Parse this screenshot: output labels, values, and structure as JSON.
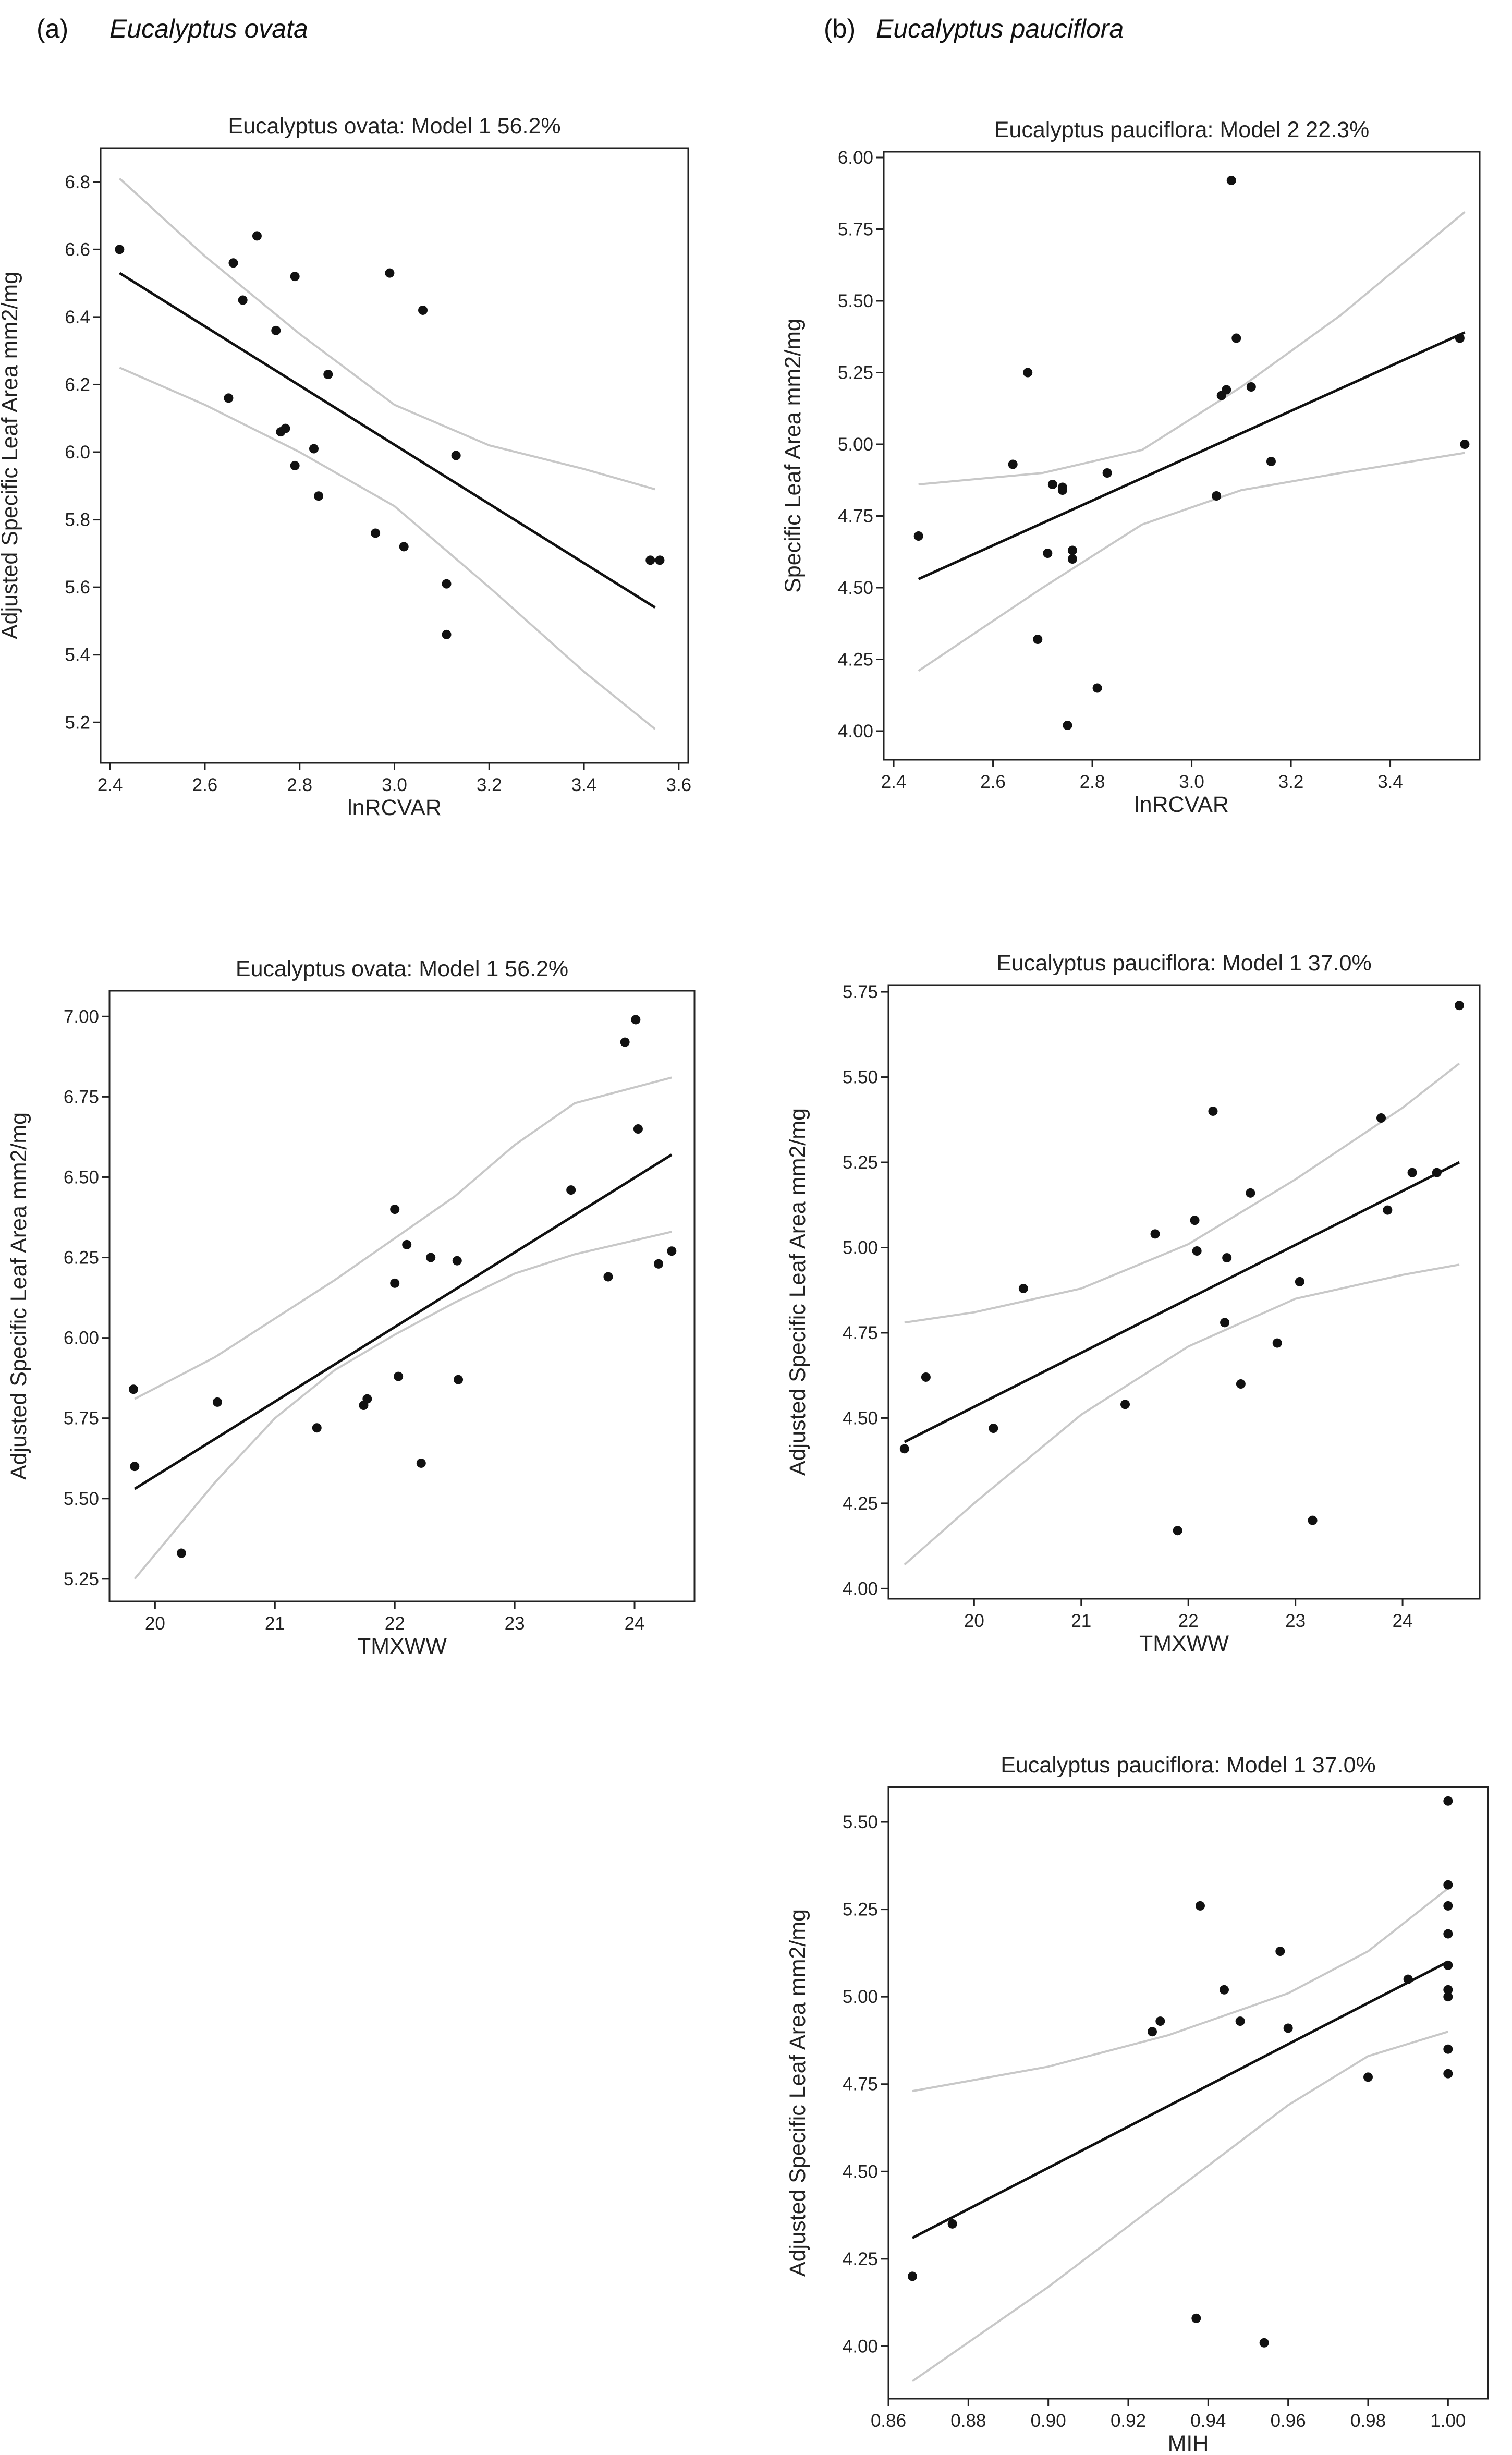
{
  "panel_labels": [
    {
      "letter": "(a)",
      "species": "Eucalyptus ovata"
    },
    {
      "letter": "(b)",
      "species": "Eucalyptus pauciflora"
    }
  ],
  "colors": {
    "points": "#111111",
    "fit": "#111111",
    "ci": "#c8c8c8",
    "frame": "#222222"
  },
  "chart_data": [
    {
      "id": "ovata-lnrcvar",
      "type": "scatter",
      "title": "Eucalyptus ovata: Model 1 56.2%",
      "xlabel": "lnRCVAR",
      "ylabel": "Adjusted Specific Leaf Area mm2/mg",
      "xlim": [
        2.38,
        3.62
      ],
      "ylim": [
        5.08,
        6.9
      ],
      "xticks": [
        2.4,
        2.6,
        2.8,
        3.0,
        3.2,
        3.4,
        3.6
      ],
      "xtick_labels": [
        "2.4",
        "2.6",
        "2.8",
        "3.0",
        "3.2",
        "3.4",
        "3.6"
      ],
      "yticks": [
        5.2,
        5.4,
        5.6,
        5.8,
        6.0,
        6.2,
        6.4,
        6.6,
        6.8
      ],
      "ytick_labels": [
        "5.2",
        "5.4",
        "5.6",
        "5.8",
        "6.0",
        "6.2",
        "6.4",
        "6.6",
        "6.8"
      ],
      "points": [
        [
          2.42,
          6.6
        ],
        [
          2.65,
          6.16
        ],
        [
          2.66,
          6.56
        ],
        [
          2.68,
          6.45
        ],
        [
          2.71,
          6.64
        ],
        [
          2.75,
          6.36
        ],
        [
          2.76,
          6.06
        ],
        [
          2.77,
          6.07
        ],
        [
          2.79,
          6.52
        ],
        [
          2.79,
          5.96
        ],
        [
          2.83,
          6.01
        ],
        [
          2.84,
          5.87
        ],
        [
          2.86,
          6.23
        ],
        [
          2.96,
          5.76
        ],
        [
          2.99,
          6.53
        ],
        [
          3.02,
          5.72
        ],
        [
          3.06,
          6.42
        ],
        [
          3.11,
          5.61
        ],
        [
          3.11,
          5.46
        ],
        [
          3.13,
          5.99
        ],
        [
          3.54,
          5.68
        ],
        [
          3.56,
          5.68
        ]
      ],
      "fit_line": [
        [
          2.42,
          6.53
        ],
        [
          3.55,
          5.54
        ]
      ],
      "ci_upper": [
        [
          2.42,
          6.81
        ],
        [
          2.6,
          6.58
        ],
        [
          2.8,
          6.35
        ],
        [
          3.0,
          6.14
        ],
        [
          3.2,
          6.02
        ],
        [
          3.4,
          5.95
        ],
        [
          3.55,
          5.89
        ]
      ],
      "ci_lower": [
        [
          2.42,
          6.25
        ],
        [
          2.6,
          6.14
        ],
        [
          2.8,
          6.0
        ],
        [
          3.0,
          5.84
        ],
        [
          3.2,
          5.6
        ],
        [
          3.4,
          5.35
        ],
        [
          3.55,
          5.18
        ]
      ]
    },
    {
      "id": "pauciflora-lnrcvar",
      "type": "scatter",
      "title": "Eucalyptus pauciflora: Model 2 22.3%",
      "xlabel": "lnRCVAR",
      "ylabel": "Specific Leaf Area mm2/mg",
      "xlim": [
        2.38,
        3.58
      ],
      "ylim": [
        3.9,
        6.02
      ],
      "xticks": [
        2.4,
        2.6,
        2.8,
        3.0,
        3.2,
        3.4
      ],
      "xtick_labels": [
        "2.4",
        "2.6",
        "2.8",
        "3.0",
        "3.2",
        "3.4"
      ],
      "yticks": [
        4.0,
        4.25,
        4.5,
        4.75,
        5.0,
        5.25,
        5.5,
        5.75,
        6.0
      ],
      "ytick_labels": [
        "4.00",
        "4.25",
        "4.50",
        "4.75",
        "5.00",
        "5.25",
        "5.50",
        "5.75",
        "6.00"
      ],
      "points": [
        [
          2.45,
          4.68
        ],
        [
          2.64,
          4.93
        ],
        [
          2.67,
          5.25
        ],
        [
          2.69,
          4.32
        ],
        [
          2.71,
          4.62
        ],
        [
          2.72,
          4.86
        ],
        [
          2.74,
          4.84
        ],
        [
          2.74,
          4.85
        ],
        [
          2.75,
          4.02
        ],
        [
          2.76,
          4.63
        ],
        [
          2.76,
          4.6
        ],
        [
          2.81,
          4.15
        ],
        [
          2.83,
          4.9
        ],
        [
          3.05,
          4.82
        ],
        [
          3.06,
          5.17
        ],
        [
          3.07,
          5.19
        ],
        [
          3.08,
          5.92
        ],
        [
          3.09,
          5.37
        ],
        [
          3.12,
          5.2
        ],
        [
          3.16,
          4.94
        ],
        [
          3.54,
          5.37
        ],
        [
          3.55,
          5.0
        ]
      ],
      "fit_line": [
        [
          2.45,
          4.53
        ],
        [
          3.55,
          5.39
        ]
      ],
      "ci_upper": [
        [
          2.45,
          4.86
        ],
        [
          2.7,
          4.9
        ],
        [
          2.9,
          4.98
        ],
        [
          3.1,
          5.2
        ],
        [
          3.3,
          5.45
        ],
        [
          3.55,
          5.81
        ]
      ],
      "ci_lower": [
        [
          2.45,
          4.21
        ],
        [
          2.7,
          4.5
        ],
        [
          2.9,
          4.72
        ],
        [
          3.1,
          4.84
        ],
        [
          3.3,
          4.9
        ],
        [
          3.55,
          4.97
        ]
      ]
    },
    {
      "id": "ovata-tmxww",
      "type": "scatter",
      "title": "Eucalyptus ovata: Model 1 56.2%",
      "xlabel": "TMXWW",
      "ylabel": "Adjusted Specific Leaf Area mm2/mg",
      "xlim": [
        19.62,
        24.5
      ],
      "ylim": [
        5.18,
        7.08
      ],
      "xticks": [
        20,
        21,
        22,
        23,
        24
      ],
      "xtick_labels": [
        "20",
        "21",
        "22",
        "23",
        "24"
      ],
      "yticks": [
        5.25,
        5.5,
        5.75,
        6.0,
        6.25,
        6.5,
        6.75,
        7.0
      ],
      "ytick_labels": [
        "5.25",
        "5.50",
        "5.75",
        "6.00",
        "6.25",
        "6.50",
        "6.75",
        "7.00"
      ],
      "points": [
        [
          19.82,
          5.84
        ],
        [
          19.83,
          5.6
        ],
        [
          20.22,
          5.33
        ],
        [
          20.52,
          5.8
        ],
        [
          21.35,
          5.72
        ],
        [
          21.74,
          5.79
        ],
        [
          21.77,
          5.81
        ],
        [
          22.0,
          6.4
        ],
        [
          22.0,
          6.17
        ],
        [
          22.03,
          5.88
        ],
        [
          22.1,
          6.29
        ],
        [
          22.22,
          5.61
        ],
        [
          22.3,
          6.25
        ],
        [
          22.52,
          6.24
        ],
        [
          22.53,
          5.87
        ],
        [
          23.47,
          6.46
        ],
        [
          23.78,
          6.19
        ],
        [
          23.92,
          6.92
        ],
        [
          24.01,
          6.99
        ],
        [
          24.03,
          6.65
        ],
        [
          24.2,
          6.23
        ],
        [
          24.31,
          6.27
        ]
      ],
      "fit_line": [
        [
          19.83,
          5.53
        ],
        [
          24.31,
          6.57
        ]
      ],
      "ci_upper": [
        [
          19.83,
          5.81
        ],
        [
          20.5,
          5.94
        ],
        [
          21.0,
          6.06
        ],
        [
          21.5,
          6.18
        ],
        [
          22.0,
          6.31
        ],
        [
          22.5,
          6.44
        ],
        [
          23.0,
          6.6
        ],
        [
          23.5,
          6.73
        ],
        [
          24.31,
          6.81
        ]
      ],
      "ci_lower": [
        [
          19.83,
          5.25
        ],
        [
          20.5,
          5.55
        ],
        [
          21.0,
          5.75
        ],
        [
          21.5,
          5.9
        ],
        [
          22.0,
          6.01
        ],
        [
          22.5,
          6.11
        ],
        [
          23.0,
          6.2
        ],
        [
          23.5,
          6.26
        ],
        [
          24.31,
          6.33
        ]
      ]
    },
    {
      "id": "pauciflora-tmxww",
      "type": "scatter",
      "title": "Eucalyptus pauciflora: Model 1 37.0%",
      "xlabel": "TMXWW",
      "ylabel": "Adjusted Specific Leaf Area mm2/mg",
      "xlim": [
        19.2,
        24.72
      ],
      "ylim": [
        3.97,
        5.77
      ],
      "xticks": [
        20,
        21,
        22,
        23,
        24
      ],
      "xtick_labels": [
        "20",
        "21",
        "22",
        "23",
        "24"
      ],
      "yticks": [
        4.0,
        4.25,
        4.5,
        4.75,
        5.0,
        5.25,
        5.5,
        5.75
      ],
      "ytick_labels": [
        "4.00",
        "4.25",
        "4.50",
        "4.75",
        "5.00",
        "5.25",
        "5.50",
        "5.75"
      ],
      "points": [
        [
          19.35,
          4.41
        ],
        [
          19.55,
          4.62
        ],
        [
          20.18,
          4.47
        ],
        [
          20.46,
          4.88
        ],
        [
          21.41,
          4.54
        ],
        [
          21.69,
          5.04
        ],
        [
          21.9,
          4.17
        ],
        [
          22.06,
          5.08
        ],
        [
          22.08,
          4.99
        ],
        [
          22.23,
          5.4
        ],
        [
          22.34,
          4.78
        ],
        [
          22.36,
          4.97
        ],
        [
          22.49,
          4.6
        ],
        [
          22.58,
          5.16
        ],
        [
          22.83,
          4.72
        ],
        [
          23.04,
          4.9
        ],
        [
          23.16,
          4.2
        ],
        [
          23.8,
          5.38
        ],
        [
          23.86,
          5.11
        ],
        [
          24.09,
          5.22
        ],
        [
          24.32,
          5.22
        ],
        [
          24.53,
          5.71
        ]
      ],
      "fit_line": [
        [
          19.35,
          4.43
        ],
        [
          24.53,
          5.25
        ]
      ],
      "ci_upper": [
        [
          19.35,
          4.78
        ],
        [
          20.0,
          4.81
        ],
        [
          21.0,
          4.88
        ],
        [
          22.0,
          5.01
        ],
        [
          23.0,
          5.2
        ],
        [
          24.0,
          5.41
        ],
        [
          24.53,
          5.54
        ]
      ],
      "ci_lower": [
        [
          19.35,
          4.07
        ],
        [
          20.0,
          4.25
        ],
        [
          21.0,
          4.51
        ],
        [
          22.0,
          4.71
        ],
        [
          23.0,
          4.85
        ],
        [
          24.0,
          4.92
        ],
        [
          24.53,
          4.95
        ]
      ]
    },
    {
      "id": "pauciflora-mih",
      "type": "scatter",
      "title": "Eucalyptus pauciflora: Model 1 37.0%",
      "xlabel": "MIH",
      "ylabel": "Adjusted Specific Leaf Area mm2/mg",
      "xlim": [
        0.86,
        1.01
      ],
      "ylim": [
        3.85,
        5.6
      ],
      "xticks": [
        0.86,
        0.88,
        0.9,
        0.92,
        0.94,
        0.96,
        0.98,
        1.0
      ],
      "xtick_labels": [
        "0.86",
        "0.88",
        "0.90",
        "0.92",
        "0.94",
        "0.96",
        "0.98",
        "1.00"
      ],
      "yticks": [
        4.0,
        4.25,
        4.5,
        4.75,
        5.0,
        5.25,
        5.5
      ],
      "ytick_labels": [
        "4.00",
        "4.25",
        "4.50",
        "4.75",
        "5.00",
        "5.25",
        "5.50"
      ],
      "points": [
        [
          0.866,
          4.2
        ],
        [
          0.876,
          4.35
        ],
        [
          0.926,
          4.9
        ],
        [
          0.928,
          4.93
        ],
        [
          0.937,
          4.08
        ],
        [
          0.938,
          5.26
        ],
        [
          0.944,
          5.02
        ],
        [
          0.948,
          4.93
        ],
        [
          0.954,
          4.01
        ],
        [
          0.958,
          5.13
        ],
        [
          0.96,
          4.91
        ],
        [
          0.98,
          4.77
        ],
        [
          0.99,
          5.05
        ],
        [
          1.0,
          5.56
        ],
        [
          1.0,
          5.32
        ],
        [
          1.0,
          5.26
        ],
        [
          1.0,
          5.18
        ],
        [
          1.0,
          5.09
        ],
        [
          1.0,
          5.02
        ],
        [
          1.0,
          5.0
        ],
        [
          1.0,
          4.85
        ],
        [
          1.0,
          4.78
        ]
      ],
      "fit_line": [
        [
          0.866,
          4.31
        ],
        [
          1.0,
          5.1
        ]
      ],
      "ci_upper": [
        [
          0.866,
          4.73
        ],
        [
          0.9,
          4.8
        ],
        [
          0.93,
          4.89
        ],
        [
          0.96,
          5.01
        ],
        [
          0.98,
          5.13
        ],
        [
          1.0,
          5.31
        ]
      ],
      "ci_lower": [
        [
          0.866,
          3.9
        ],
        [
          0.9,
          4.17
        ],
        [
          0.93,
          4.43
        ],
        [
          0.96,
          4.69
        ],
        [
          0.98,
          4.83
        ],
        [
          1.0,
          4.9
        ]
      ]
    }
  ]
}
